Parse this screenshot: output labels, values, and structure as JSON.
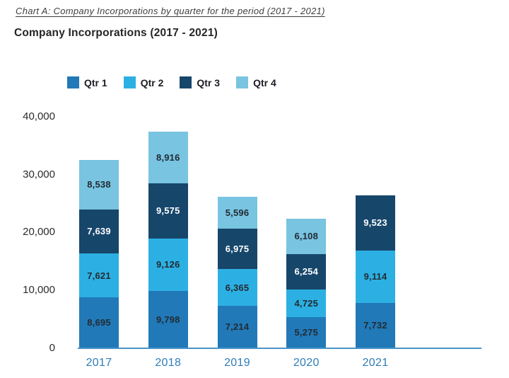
{
  "page": {
    "heading": "Chart A: Company Incorporations by quarter for the period (2017 - 2021)",
    "chart_title": "Company Incorporations (2017 - 2021)"
  },
  "colors": {
    "qtr1": "#2179b8",
    "qtr2": "#2cb0e3",
    "qtr3": "#17466b",
    "qtr4": "#78c4e1",
    "axis_line": "#4a94c8",
    "x_label_blue": "#2e7db8",
    "data_label_dark": "#222b33",
    "data_label_light": "#ffffff"
  },
  "chart_data": {
    "type": "bar",
    "stacked": true,
    "title": "Company Incorporations (2017 - 2021)",
    "categories": [
      "2017",
      "2018",
      "2019",
      "2020",
      "2021"
    ],
    "series": [
      {
        "name": "Qtr 1",
        "color": "#2179b8",
        "label_color": "#222b33",
        "values": [
          8695,
          9798,
          7214,
          5275,
          7732
        ]
      },
      {
        "name": "Qtr 2",
        "color": "#2cb0e3",
        "label_color": "#222b33",
        "values": [
          7621,
          9126,
          6365,
          4725,
          9114
        ]
      },
      {
        "name": "Qtr 3",
        "color": "#17466b",
        "label_color": "#ffffff",
        "values": [
          7639,
          9575,
          6975,
          6254,
          9523
        ]
      },
      {
        "name": "Qtr 4",
        "color": "#78c4e1",
        "label_color": "#222b33",
        "values": [
          8538,
          8916,
          5596,
          6108,
          null
        ]
      }
    ],
    "totals": [
      32493,
      37415,
      26150,
      22362,
      26369
    ],
    "ylim": [
      0,
      40000
    ],
    "ytick_labels": [
      "0",
      "10,000",
      "20,000",
      "30,000",
      "40,000"
    ],
    "xlabel": "",
    "ylabel": "",
    "legend_position": "top",
    "grid": false
  }
}
